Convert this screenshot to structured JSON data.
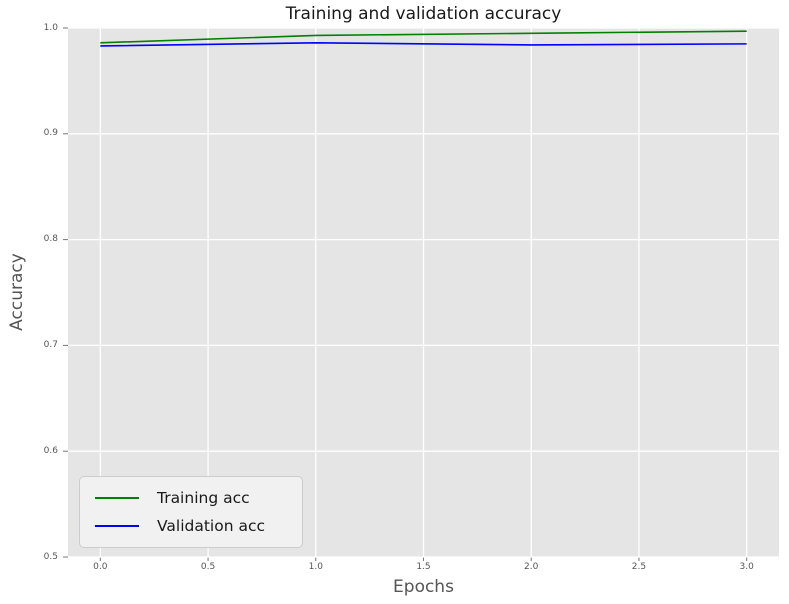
{
  "chart_data": {
    "type": "line",
    "title": "Training and validation accuracy",
    "xlabel": "Epochs",
    "ylabel": "Accuracy",
    "x": [
      0,
      1,
      2,
      3
    ],
    "series": [
      {
        "name": "Training acc",
        "color": "#008000",
        "values": [
          0.986,
          0.993,
          0.995,
          0.997
        ]
      },
      {
        "name": "Validation acc",
        "color": "#0000ff",
        "values": [
          0.983,
          0.986,
          0.984,
          0.985
        ]
      }
    ],
    "xlim": [
      -0.15,
      3.15
    ],
    "ylim": [
      0.5,
      1.0
    ],
    "x_ticks": [
      "0.0",
      "0.5",
      "1.0",
      "1.5",
      "2.0",
      "2.5",
      "3.0"
    ],
    "y_ticks": [
      "0.5",
      "0.6",
      "0.7",
      "0.8",
      "0.9",
      "1.0"
    ],
    "grid": true,
    "legend_position": "lower left",
    "colors": {
      "figure_bg": "#ffffff",
      "plot_bg": "#e5e5e5",
      "gridline": "#ffffff",
      "tick_mark": "#777777",
      "tick_label": "#555555",
      "axis_label": "#555555",
      "title": "#1a1a1a",
      "legend_bg": "#f1f1f1",
      "legend_border": "#cccccc"
    }
  }
}
